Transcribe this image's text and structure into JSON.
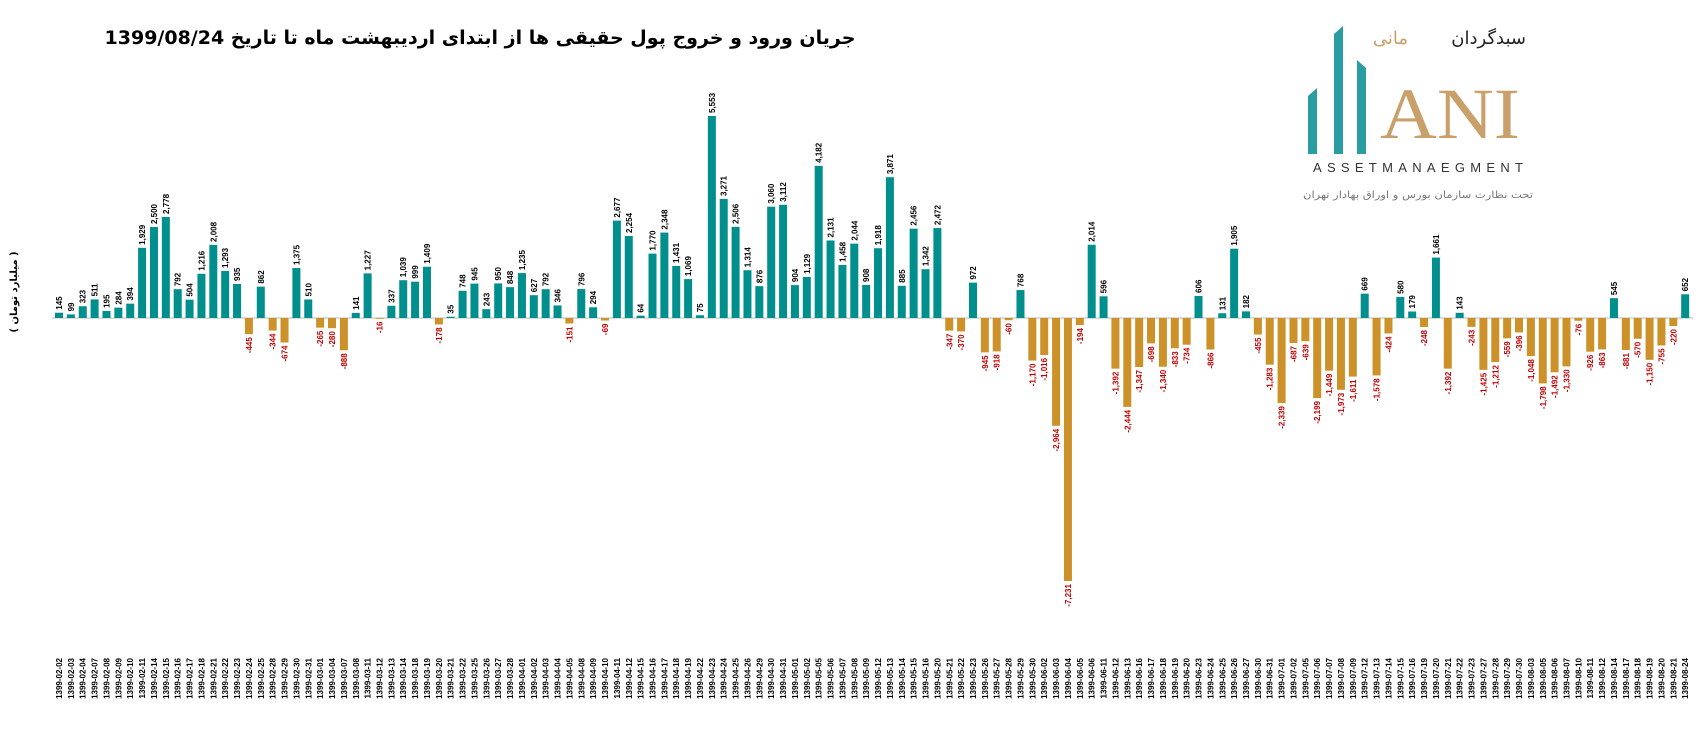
{
  "chart_data": {
    "type": "bar",
    "title": "جریان ورود و خروج پول حقیقی ها از ابتدای اردیبهشت ماه تا تاریخ 1399/08/24",
    "ylabel": "( میلیارد تومان )",
    "xlabel": "",
    "ylim": [
      -7231,
      5553
    ],
    "grid": false,
    "legend": "none",
    "colors": {
      "positive": "#008f8c",
      "negative": "#cc9128",
      "positive_label": "#000000",
      "negative_label": "#c00000"
    },
    "categories": [
      "1399-02-02",
      "1399-02-03",
      "1399-02-04",
      "1399-02-07",
      "1399-02-08",
      "1399-02-09",
      "1399-02-10",
      "1399-02-11",
      "1399-02-14",
      "1399-02-15",
      "1399-02-16",
      "1399-02-17",
      "1399-02-18",
      "1399-02-21",
      "1399-02-22",
      "1399-02-23",
      "1399-02-24",
      "1399-02-25",
      "1399-02-28",
      "1399-02-29",
      "1399-02-30",
      "1399-02-31",
      "1399-03-01",
      "1399-03-04",
      "1399-03-07",
      "1399-03-08",
      "1399-03-11",
      "1399-03-12",
      "1399-03-13",
      "1399-03-14",
      "1399-03-18",
      "1399-03-19",
      "1399-03-20",
      "1399-03-21",
      "1399-03-22",
      "1399-03-25",
      "1399-03-26",
      "1399-03-27",
      "1399-03-28",
      "1399-04-01",
      "1399-04-02",
      "1399-04-03",
      "1399-04-04",
      "1399-04-05",
      "1399-04-08",
      "1399-04-09",
      "1399-04-10",
      "1399-04-11",
      "1399-04-12",
      "1399-04-15",
      "1399-04-16",
      "1399-04-17",
      "1399-04-18",
      "1399-04-19",
      "1399-04-22",
      "1399-04-23",
      "1399-04-24",
      "1399-04-25",
      "1399-04-26",
      "1399-04-29",
      "1399-04-30",
      "1399-04-31",
      "1399-05-01",
      "1399-05-02",
      "1399-05-05",
      "1399-05-06",
      "1399-05-07",
      "1399-05-08",
      "1399-05-09",
      "1399-05-12",
      "1399-05-13",
      "1399-05-14",
      "1399-05-15",
      "1399-05-16",
      "1399-05-20",
      "1399-05-21",
      "1399-05-22",
      "1399-05-23",
      "1399-05-26",
      "1399-05-27",
      "1399-05-28",
      "1399-05-29",
      "1399-05-30",
      "1399-06-02",
      "1399-06-03",
      "1399-06-04",
      "1399-06-05",
      "1399-06-06",
      "1399-06-11",
      "1399-06-12",
      "1399-06-13",
      "1399-06-16",
      "1399-06-17",
      "1399-06-18",
      "1399-06-19",
      "1399-06-20",
      "1399-06-23",
      "1399-06-24",
      "1399-06-25",
      "1399-06-26",
      "1399-06-27",
      "1399-06-30",
      "1399-06-31",
      "1399-07-01",
      "1399-07-02",
      "1399-07-05",
      "1399-07-06",
      "1399-07-07",
      "1399-07-08",
      "1399-07-09",
      "1399-07-12",
      "1399-07-13",
      "1399-07-14",
      "1399-07-15",
      "1399-07-16",
      "1399-07-19",
      "1399-07-20",
      "1399-07-21",
      "1399-07-22",
      "1399-07-23",
      "1399-07-27",
      "1399-07-28",
      "1399-07-29",
      "1399-07-30",
      "1399-08-03",
      "1399-08-05",
      "1399-08-06",
      "1399-08-07",
      "1399-08-10",
      "1399-08-11",
      "1399-08-12",
      "1399-08-14",
      "1399-08-17",
      "1399-08-18",
      "1399-08-19",
      "1399-08-20",
      "1399-08-21",
      "1399-08-24"
    ],
    "values": [
      145,
      99,
      323,
      511,
      195,
      284,
      394,
      1929,
      2500,
      2778,
      792,
      504,
      1216,
      2008,
      1293,
      935,
      -445,
      862,
      -344,
      -674,
      1375,
      510,
      -265,
      -280,
      -888,
      141,
      1227,
      -16,
      337,
      1039,
      999,
      1409,
      -178,
      35,
      748,
      945,
      243,
      950,
      848,
      1235,
      627,
      792,
      346,
      -151,
      796,
      294,
      -69,
      2677,
      2254,
      64,
      1770,
      2348,
      1431,
      1069,
      75,
      5553,
      3271,
      2506,
      1314,
      876,
      3060,
      3112,
      904,
      1129,
      4182,
      2131,
      1458,
      2044,
      908,
      1918,
      3871,
      885,
      2456,
      1342,
      2472,
      -347,
      -370,
      972,
      -945,
      -918,
      -60,
      768,
      -1170,
      -1016,
      -2964,
      -7231,
      -194,
      2014,
      596,
      -1392,
      -2444,
      -1347,
      -698,
      -1340,
      -833,
      -734,
      606,
      -866,
      131,
      1905,
      182,
      -455,
      -1283,
      -2339,
      -687,
      -639,
      -2199,
      -1449,
      -1973,
      -1611,
      669,
      -1578,
      -424,
      580,
      179,
      -248,
      1661,
      -1392,
      143,
      -243,
      -1425,
      -1212,
      -559,
      -396,
      -1048,
      -1798,
      -1492,
      -1330,
      -76,
      -926,
      -863,
      545,
      -881,
      -570,
      -1150,
      -755,
      -220,
      652
    ]
  },
  "logo": {
    "name_fa": "سبدگردان مانی",
    "name_fa_part1": "سبدگردان",
    "name_fa_part2": "مانی",
    "mark": "ANI",
    "subtitle_en": "ASSETMANAEGMENT",
    "tagline_fa": "تحت نظارت سازمان بورس و اوراق بهادار تهران",
    "colors": {
      "teal": "#2a9da3",
      "gold": "#c9a06a"
    }
  }
}
